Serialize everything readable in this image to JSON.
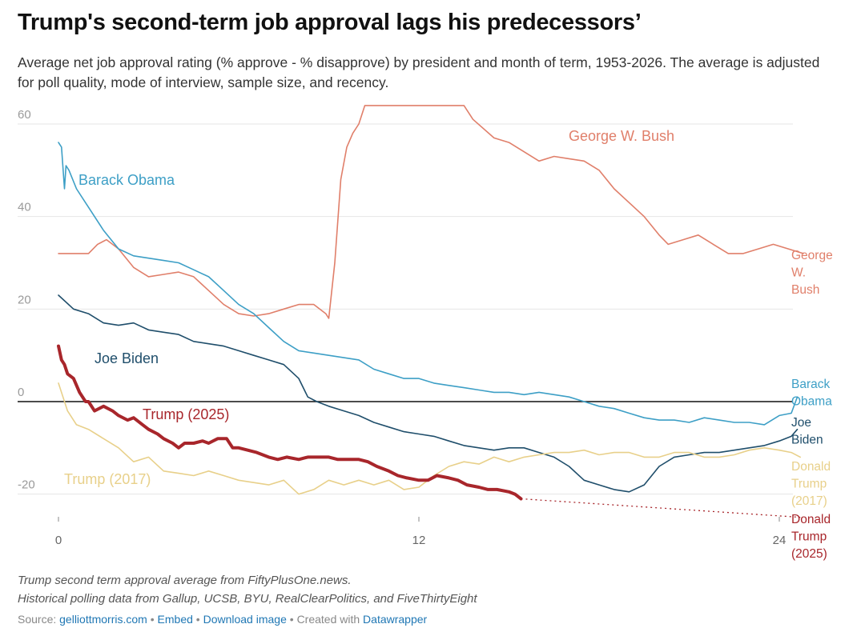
{
  "chart_data": {
    "type": "line",
    "title": "Trump's second-term job approval lags his predecessors’",
    "subtitle": "Average net job approval rating (% approve - % disapprove) by president and month of term, 1953-2026. The average is adjusted for poll quality, mode of interview, sample size, and recency.",
    "xlabel": "",
    "ylabel": "",
    "xlim": [
      0,
      24
    ],
    "ylim": [
      -23,
      63
    ],
    "x_ticks": [
      0,
      12,
      24
    ],
    "x_tick_labels": [
      "0",
      "12",
      "24"
    ],
    "y_ticks": [
      60,
      40,
      20,
      0,
      -20
    ],
    "y_tick_labels": [
      "60",
      "40",
      "20",
      "0",
      "-20"
    ],
    "grid": true,
    "zero_line": true,
    "series": [
      {
        "name": "George W. Bush",
        "label": "George W. Bush",
        "end_label": [
          "George",
          "W.",
          "Bush"
        ],
        "color": "#e07f6a",
        "points": [
          [
            0,
            32
          ],
          [
            0.5,
            32
          ],
          [
            1,
            32
          ],
          [
            1.3,
            34
          ],
          [
            1.6,
            35
          ],
          [
            2,
            33
          ],
          [
            2.5,
            29
          ],
          [
            3,
            27
          ],
          [
            3.5,
            27.5
          ],
          [
            4,
            28
          ],
          [
            4.5,
            27
          ],
          [
            5,
            24
          ],
          [
            5.5,
            21
          ],
          [
            6,
            19
          ],
          [
            6.5,
            18.5
          ],
          [
            7,
            19
          ],
          [
            7.5,
            20
          ],
          [
            8,
            21
          ],
          [
            8.5,
            21
          ],
          [
            8.9,
            19
          ],
          [
            9.0,
            18
          ],
          [
            9.2,
            30
          ],
          [
            9.4,
            48
          ],
          [
            9.6,
            55
          ],
          [
            9.8,
            58
          ],
          [
            10.0,
            60
          ],
          [
            10.2,
            64
          ],
          [
            13.5,
            64
          ],
          [
            13.8,
            61
          ],
          [
            14.5,
            57
          ],
          [
            15,
            56
          ],
          [
            15.5,
            54
          ],
          [
            16,
            52
          ],
          [
            16.5,
            53
          ],
          [
            17,
            52.5
          ],
          [
            17.5,
            52
          ],
          [
            18,
            50
          ],
          [
            18.5,
            46
          ],
          [
            19,
            43
          ],
          [
            19.5,
            40
          ],
          [
            20,
            36
          ],
          [
            20.3,
            34
          ],
          [
            20.8,
            35
          ],
          [
            21.3,
            36
          ],
          [
            21.8,
            34
          ],
          [
            22.3,
            32
          ],
          [
            22.8,
            32
          ],
          [
            23.3,
            33
          ],
          [
            23.8,
            34
          ],
          [
            24.3,
            33
          ],
          [
            24.8,
            32
          ]
        ]
      },
      {
        "name": "Barack Obama",
        "label": "Barack Obama",
        "end_label": [
          "Barack",
          "Obama"
        ],
        "color": "#3d9fc6",
        "points": [
          [
            0,
            56
          ],
          [
            0.1,
            55
          ],
          [
            0.2,
            46
          ],
          [
            0.25,
            51
          ],
          [
            0.35,
            50
          ],
          [
            0.6,
            46
          ],
          [
            1,
            42
          ],
          [
            1.5,
            37
          ],
          [
            2,
            33
          ],
          [
            2.5,
            31.5
          ],
          [
            3,
            31
          ],
          [
            3.5,
            30.5
          ],
          [
            4,
            30
          ],
          [
            4.5,
            28.5
          ],
          [
            5,
            27
          ],
          [
            5.5,
            24
          ],
          [
            6,
            21
          ],
          [
            6.5,
            19
          ],
          [
            7,
            16
          ],
          [
            7.5,
            13
          ],
          [
            8,
            11
          ],
          [
            8.5,
            10.5
          ],
          [
            9,
            10
          ],
          [
            9.5,
            9.5
          ],
          [
            10,
            9
          ],
          [
            10.5,
            7
          ],
          [
            11,
            6
          ],
          [
            11.5,
            5
          ],
          [
            12,
            5
          ],
          [
            12.5,
            4
          ],
          [
            13,
            3.5
          ],
          [
            13.5,
            3
          ],
          [
            14,
            2.5
          ],
          [
            14.5,
            2
          ],
          [
            15,
            2
          ],
          [
            15.5,
            1.5
          ],
          [
            16,
            2
          ],
          [
            16.5,
            1.5
          ],
          [
            17,
            1
          ],
          [
            17.5,
            0
          ],
          [
            18,
            -1
          ],
          [
            18.5,
            -1.5
          ],
          [
            19,
            -2.5
          ],
          [
            19.5,
            -3.5
          ],
          [
            20,
            -4
          ],
          [
            20.5,
            -4
          ],
          [
            21,
            -4.5
          ],
          [
            21.5,
            -3.5
          ],
          [
            22,
            -4
          ],
          [
            22.5,
            -4.5
          ],
          [
            23,
            -4.5
          ],
          [
            23.5,
            -5
          ],
          [
            24,
            -3
          ],
          [
            24.4,
            -2.5
          ],
          [
            24.6,
            1
          ]
        ]
      },
      {
        "name": "Joe Biden",
        "label": "Joe Biden",
        "end_label": [
          "Joe",
          "Biden"
        ],
        "color": "#1f4e6b",
        "points": [
          [
            0,
            23
          ],
          [
            0.5,
            20
          ],
          [
            1,
            19
          ],
          [
            1.5,
            17
          ],
          [
            2,
            16.5
          ],
          [
            2.5,
            17
          ],
          [
            3,
            15.5
          ],
          [
            3.5,
            15
          ],
          [
            4,
            14.5
          ],
          [
            4.5,
            13
          ],
          [
            5,
            12.5
          ],
          [
            5.5,
            12
          ],
          [
            6,
            11
          ],
          [
            6.5,
            10
          ],
          [
            7,
            9
          ],
          [
            7.5,
            8
          ],
          [
            8,
            5
          ],
          [
            8.3,
            1
          ],
          [
            8.6,
            0
          ],
          [
            9,
            -1
          ],
          [
            9.5,
            -2
          ],
          [
            10,
            -3
          ],
          [
            10.5,
            -4.5
          ],
          [
            11,
            -5.5
          ],
          [
            11.5,
            -6.5
          ],
          [
            12,
            -7
          ],
          [
            12.5,
            -7.5
          ],
          [
            13,
            -8.5
          ],
          [
            13.5,
            -9.5
          ],
          [
            14,
            -10
          ],
          [
            14.5,
            -10.5
          ],
          [
            15,
            -10
          ],
          [
            15.5,
            -10
          ],
          [
            16,
            -11
          ],
          [
            16.5,
            -12
          ],
          [
            17,
            -14
          ],
          [
            17.5,
            -17
          ],
          [
            18,
            -18
          ],
          [
            18.5,
            -19
          ],
          [
            19,
            -19.5
          ],
          [
            19.5,
            -18
          ],
          [
            20,
            -14
          ],
          [
            20.5,
            -12
          ],
          [
            21,
            -11.5
          ],
          [
            21.5,
            -11
          ],
          [
            22,
            -11
          ],
          [
            22.5,
            -10.5
          ],
          [
            23,
            -10
          ],
          [
            23.5,
            -9.5
          ],
          [
            24,
            -8.5
          ],
          [
            24.4,
            -7.5
          ],
          [
            24.6,
            -6
          ]
        ]
      },
      {
        "name": "Donald Trump (2017)",
        "label": "Trump (2017)",
        "end_label": [
          "Donald",
          "Trump",
          "(2017)"
        ],
        "color": "#e8d08a",
        "points": [
          [
            0,
            4
          ],
          [
            0.3,
            -2
          ],
          [
            0.6,
            -5
          ],
          [
            1,
            -6
          ],
          [
            1.5,
            -8
          ],
          [
            2,
            -10
          ],
          [
            2.5,
            -13
          ],
          [
            3,
            -12
          ],
          [
            3.5,
            -15
          ],
          [
            4,
            -15.5
          ],
          [
            4.5,
            -16
          ],
          [
            5,
            -15
          ],
          [
            5.5,
            -16
          ],
          [
            6,
            -17
          ],
          [
            6.5,
            -17.5
          ],
          [
            7,
            -18
          ],
          [
            7.5,
            -17
          ],
          [
            8,
            -20
          ],
          [
            8.5,
            -19
          ],
          [
            9,
            -17
          ],
          [
            9.5,
            -18
          ],
          [
            10,
            -17
          ],
          [
            10.5,
            -18
          ],
          [
            11,
            -17
          ],
          [
            11.5,
            -19
          ],
          [
            12,
            -18.5
          ],
          [
            12.5,
            -16
          ],
          [
            13,
            -14
          ],
          [
            13.5,
            -13
          ],
          [
            14,
            -13.5
          ],
          [
            14.5,
            -12
          ],
          [
            15,
            -13
          ],
          [
            15.5,
            -12
          ],
          [
            16,
            -11.5
          ],
          [
            16.5,
            -11
          ],
          [
            17,
            -11
          ],
          [
            17.5,
            -10.5
          ],
          [
            18,
            -11.5
          ],
          [
            18.5,
            -11
          ],
          [
            19,
            -11
          ],
          [
            19.5,
            -12
          ],
          [
            20,
            -12
          ],
          [
            20.5,
            -11
          ],
          [
            21,
            -11
          ],
          [
            21.5,
            -12
          ],
          [
            22,
            -12
          ],
          [
            22.5,
            -11.5
          ],
          [
            23,
            -10.5
          ],
          [
            23.5,
            -10
          ],
          [
            24,
            -10.5
          ],
          [
            24.4,
            -11
          ],
          [
            24.7,
            -12
          ]
        ]
      },
      {
        "name": "Donald Trump (2025)",
        "label": "Trump (2025)",
        "end_label": [
          "Donald",
          "Trump",
          "(2025)"
        ],
        "color": "#a8262b",
        "points": [
          [
            0,
            12
          ],
          [
            0.1,
            9
          ],
          [
            0.2,
            8
          ],
          [
            0.3,
            6
          ],
          [
            0.5,
            5
          ],
          [
            0.7,
            2
          ],
          [
            0.9,
            0
          ],
          [
            1,
            0
          ],
          [
            1.2,
            -2
          ],
          [
            1.5,
            -1
          ],
          [
            1.8,
            -2
          ],
          [
            2,
            -3
          ],
          [
            2.3,
            -4
          ],
          [
            2.5,
            -3.5
          ],
          [
            2.8,
            -5
          ],
          [
            3,
            -6
          ],
          [
            3.3,
            -7
          ],
          [
            3.5,
            -8
          ],
          [
            3.8,
            -9
          ],
          [
            4,
            -10
          ],
          [
            4.2,
            -9
          ],
          [
            4.5,
            -9
          ],
          [
            4.8,
            -8.5
          ],
          [
            5,
            -9
          ],
          [
            5.3,
            -8
          ],
          [
            5.6,
            -8
          ],
          [
            5.8,
            -10
          ],
          [
            6,
            -10
          ],
          [
            6.3,
            -10.5
          ],
          [
            6.6,
            -11
          ],
          [
            6.8,
            -11.5
          ],
          [
            7,
            -12
          ],
          [
            7.3,
            -12.5
          ],
          [
            7.6,
            -12
          ],
          [
            8,
            -12.5
          ],
          [
            8.3,
            -12
          ],
          [
            8.6,
            -12
          ],
          [
            9,
            -12
          ],
          [
            9.3,
            -12.5
          ],
          [
            9.6,
            -12.5
          ],
          [
            10,
            -12.5
          ],
          [
            10.3,
            -13
          ],
          [
            10.6,
            -14
          ],
          [
            11,
            -15
          ],
          [
            11.3,
            -16
          ],
          [
            11.6,
            -16.5
          ],
          [
            12,
            -17
          ],
          [
            12.3,
            -17
          ],
          [
            12.6,
            -16
          ],
          [
            13,
            -16.5
          ],
          [
            13.3,
            -17
          ],
          [
            13.6,
            -18
          ],
          [
            14,
            -18.5
          ],
          [
            14.3,
            -19
          ],
          [
            14.6,
            -19
          ],
          [
            15,
            -19.5
          ],
          [
            15.2,
            -20
          ],
          [
            15.4,
            -21
          ]
        ],
        "projection": [
          [
            15.4,
            -21
          ],
          [
            24.7,
            -25
          ]
        ]
      }
    ]
  },
  "notes": [
    "Trump second term approval average from FiftyPlusOne.news.",
    "Historical polling data from Gallup, UCSB, BYU, RealClearPolitics, and FiveThirtyEight"
  ],
  "source": {
    "prefix": "Source: ",
    "site": "gelliottmorris.com",
    "sep": " • ",
    "embed": "Embed",
    "download": "Download image",
    "created": "Created with ",
    "tool": "Datawrapper"
  },
  "colors": {
    "grid": "#e6e6e6",
    "zero": "#111111",
    "axis_text": "#9a9a9a"
  }
}
